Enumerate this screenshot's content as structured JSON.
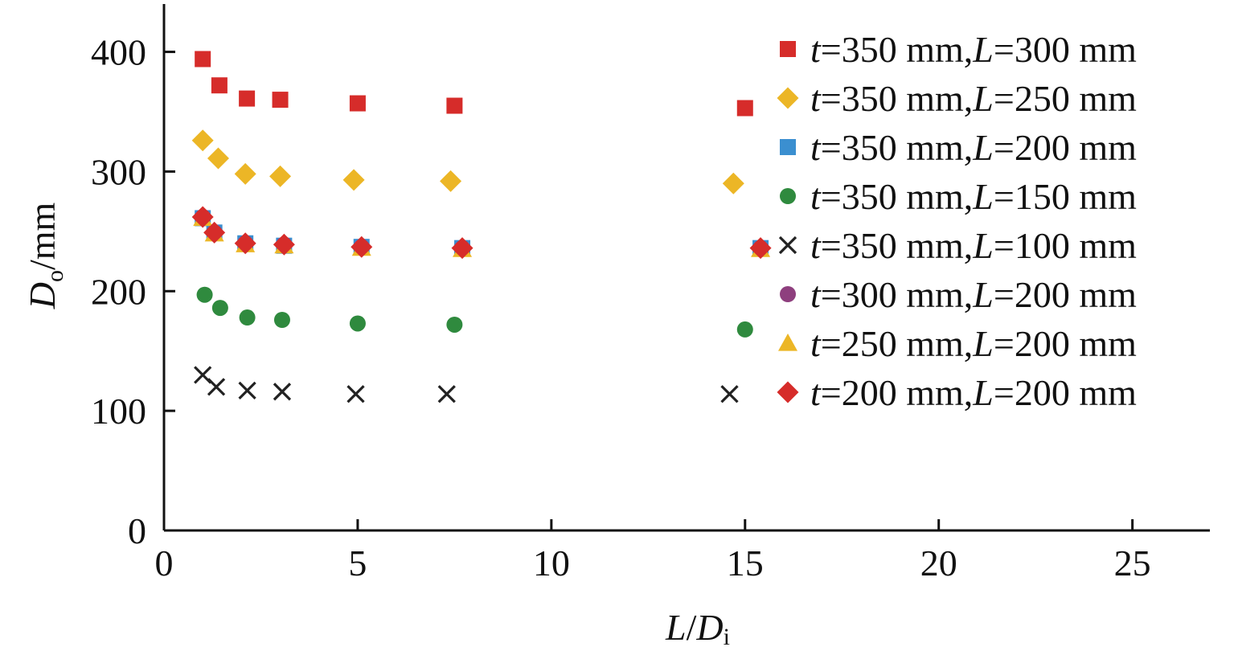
{
  "chart_data": {
    "type": "scatter",
    "xlabel": {
      "main": "L",
      "sep": "/",
      "var": "D",
      "sub": "i"
    },
    "ylabel": {
      "var": "D",
      "sub": "o",
      "rest": "/mm"
    },
    "xlim": [
      0,
      27
    ],
    "ylim": [
      0,
      440
    ],
    "xticks": [
      0,
      5,
      10,
      15,
      20,
      25
    ],
    "yticks": [
      0,
      100,
      200,
      300,
      400
    ],
    "grid": false,
    "legend_position": "top-right",
    "series": [
      {
        "name": {
          "v1": "t",
          "t1": "=350 mm,",
          "v2": "L",
          "t2": "=300 mm"
        },
        "marker": "square",
        "color": "#d62c2a",
        "points": [
          [
            1.0,
            394
          ],
          [
            1.43,
            372
          ],
          [
            2.14,
            361
          ],
          [
            3.0,
            360
          ],
          [
            5.0,
            357
          ],
          [
            7.5,
            355
          ],
          [
            15.0,
            353
          ]
        ]
      },
      {
        "name": {
          "v1": "t",
          "t1": "=350 mm,",
          "v2": "L",
          "t2": "=250 mm"
        },
        "marker": "diamond",
        "color": "#ecb626",
        "points": [
          [
            1.0,
            326
          ],
          [
            1.4,
            311
          ],
          [
            2.1,
            298
          ],
          [
            3.0,
            296
          ],
          [
            4.9,
            293
          ],
          [
            7.4,
            292
          ],
          [
            14.7,
            290
          ]
        ]
      },
      {
        "name": {
          "v1": "t",
          "t1": "=350 mm,",
          "v2": "L",
          "t2": "=200 mm"
        },
        "marker": "square",
        "color": "#3b8fd0",
        "points": [
          [
            1.0,
            261
          ],
          [
            1.3,
            249
          ],
          [
            2.1,
            240
          ],
          [
            3.1,
            238
          ],
          [
            5.1,
            237
          ],
          [
            7.7,
            236
          ],
          [
            15.4,
            236
          ]
        ]
      },
      {
        "name": {
          "v1": "t",
          "t1": "=350 mm,",
          "v2": "L",
          "t2": "=150 mm"
        },
        "marker": "circle",
        "color": "#2f8a3e",
        "points": [
          [
            1.05,
            197
          ],
          [
            1.45,
            186
          ],
          [
            2.15,
            178
          ],
          [
            3.05,
            176
          ],
          [
            5.0,
            173
          ],
          [
            7.5,
            172
          ],
          [
            15.0,
            168
          ]
        ]
      },
      {
        "name": {
          "v1": "t",
          "t1": "=350 mm,",
          "v2": "L",
          "t2": "=100 mm"
        },
        "marker": "cross",
        "color": "#222222",
        "points": [
          [
            1.0,
            130
          ],
          [
            1.35,
            120
          ],
          [
            2.15,
            117
          ],
          [
            3.05,
            116
          ],
          [
            4.95,
            114
          ],
          [
            7.3,
            114
          ],
          [
            14.6,
            114
          ]
        ]
      },
      {
        "name": {
          "v1": "t",
          "t1": "=300 mm,",
          "v2": "L",
          "t2": "=200 mm"
        },
        "marker": "circle",
        "color": "#8e3f7e",
        "points": [
          [
            1.0,
            262
          ],
          [
            1.3,
            249
          ],
          [
            2.1,
            240
          ],
          [
            3.1,
            239
          ],
          [
            5.1,
            237
          ],
          [
            7.7,
            236
          ],
          [
            15.4,
            236
          ]
        ]
      },
      {
        "name": {
          "v1": "t",
          "t1": "=250 mm,",
          "v2": "L",
          "t2": "=200 mm"
        },
        "marker": "triangle",
        "color": "#ecb626",
        "points": [
          [
            1.0,
            261
          ],
          [
            1.3,
            248
          ],
          [
            2.1,
            239
          ],
          [
            3.1,
            238
          ],
          [
            5.1,
            236
          ],
          [
            7.7,
            235
          ],
          [
            15.4,
            235
          ]
        ]
      },
      {
        "name": {
          "v1": "t",
          "t1": "=200 mm,",
          "v2": "L",
          "t2": "=200 mm"
        },
        "marker": "diamond",
        "color": "#d62c2a",
        "points": [
          [
            1.0,
            262
          ],
          [
            1.3,
            249
          ],
          [
            2.1,
            240
          ],
          [
            3.1,
            239
          ],
          [
            5.1,
            237
          ],
          [
            7.7,
            236
          ],
          [
            15.4,
            236
          ]
        ]
      }
    ]
  }
}
